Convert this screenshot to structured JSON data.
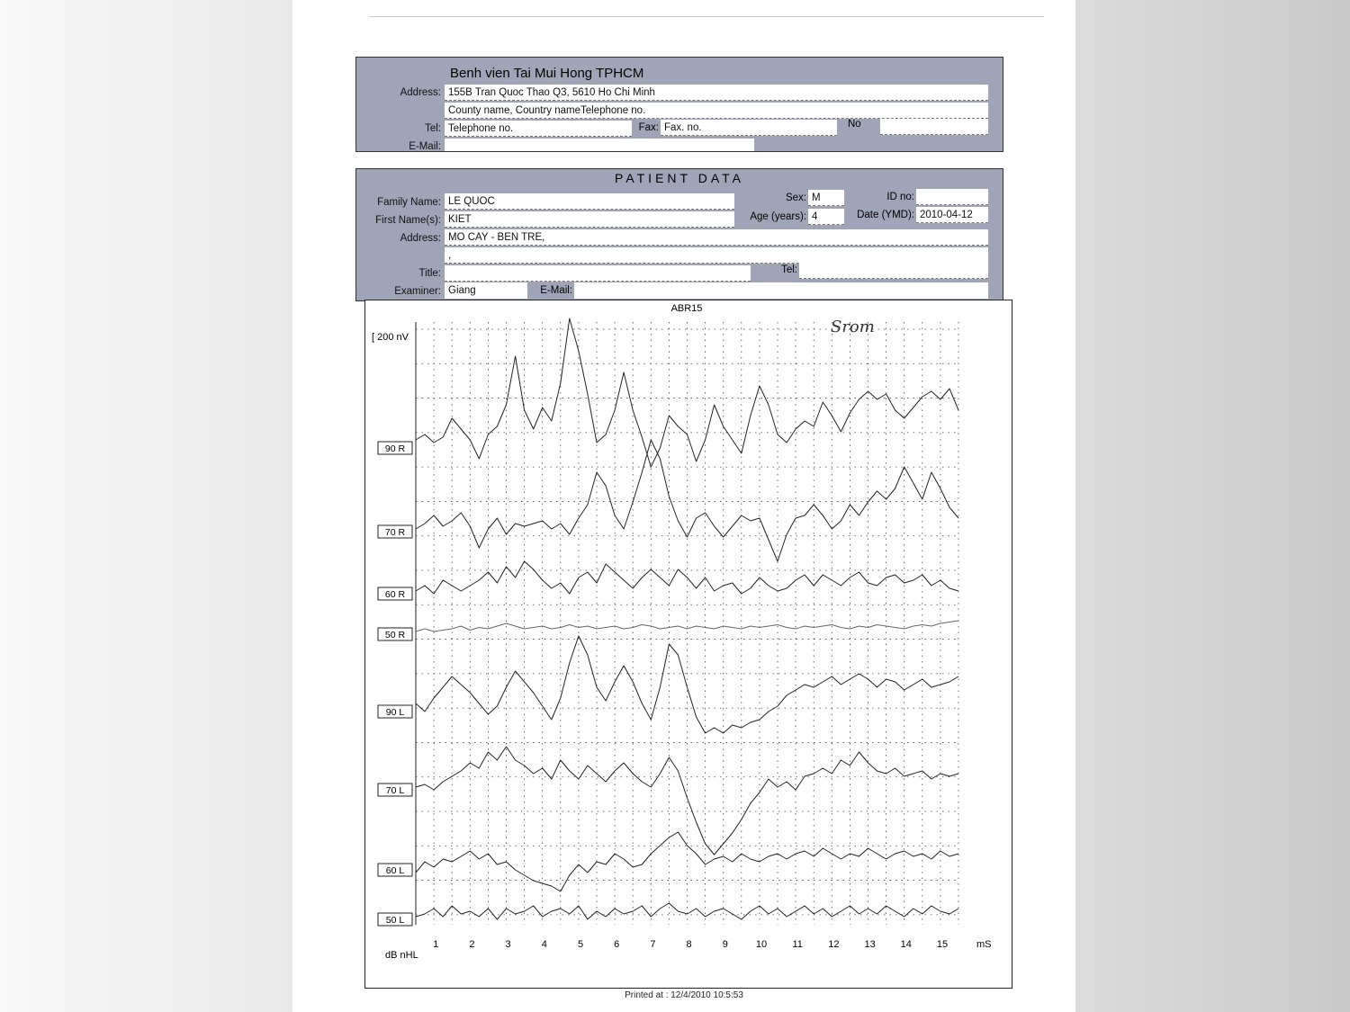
{
  "hospital": {
    "name": "Benh vien Tai Mui Hong TPHCM",
    "address_label": "Address:",
    "address_line1": "155B Tran Quoc Thao Q3, 5610 Ho Chi Minh",
    "address_line2": "County name, Country nameTelephone no.",
    "tel_label": "Tel:",
    "tel_value": "Telephone no.",
    "fax_label": "Fax:",
    "fax_value": "Fax. no.",
    "no_label": "No",
    "email_label": "E-Mail:"
  },
  "patient": {
    "title": "PATIENT DATA",
    "family_name_label": "Family Name:",
    "family_name": "LE QUOC",
    "first_name_label": "First Name(s):",
    "first_name": "KIET",
    "address_label": "Address:",
    "address_line1": "MO CAY - BEN TRE,",
    "address_line2": ",",
    "title_label": "Title:",
    "examiner_label": "Examiner:",
    "examiner": "Giang",
    "email_label": "E-Mail:",
    "sex_label": "Sex:",
    "sex": "M",
    "id_label": "ID no:",
    "age_label": "Age (years):",
    "age": "4",
    "date_label": "Date (YMD):",
    "date": "2010-04-12",
    "tel_label": "Tel:"
  },
  "chart_data": {
    "type": "line",
    "title": "ABR15",
    "scale_label": "[ 200 nV",
    "annotation": "Srom",
    "xlabel": "mS",
    "ylabel": "dB nHL",
    "x_ticks": [
      "1",
      "2",
      "3",
      "4",
      "5",
      "6",
      "7",
      "8",
      "9",
      "10",
      "11",
      "12",
      "13",
      "14",
      "15"
    ],
    "xlim": [
      0,
      15
    ],
    "grid": true,
    "series": [
      {
        "name": "90 R",
        "values": [
          0.3,
          0.5,
          0.2,
          0.4,
          1.1,
          0.7,
          0.3,
          -0.4,
          0.5,
          0.8,
          1.6,
          3.4,
          1.4,
          0.7,
          1.5,
          1.0,
          2.4,
          4.8,
          3.6,
          2.0,
          0.2,
          0.5,
          1.4,
          2.8,
          1.4,
          0.4,
          -0.7,
          0,
          1.2,
          0.8,
          0.5,
          -0.5,
          0.3,
          1.6,
          0.8,
          0.3,
          -0.2,
          1.2,
          2.3,
          1.6,
          0.5,
          0.2,
          0.7,
          1.0,
          0.8,
          1.7,
          1.2,
          0.6,
          1.3,
          1.8,
          2.1,
          1.8,
          2.0,
          1.4,
          1.1,
          1.5,
          1.9,
          2.1,
          1.8,
          2.2,
          1.4
        ]
      },
      {
        "name": "70 R",
        "values": [
          0.1,
          0.3,
          0.6,
          0.2,
          0.4,
          0.7,
          0.2,
          -0.6,
          0.1,
          0.5,
          -0.1,
          0.3,
          0.2,
          0.3,
          0.4,
          0.1,
          0.3,
          -0.1,
          0.5,
          1.0,
          2.2,
          1.7,
          0.6,
          0.1,
          1.1,
          2.2,
          3.4,
          2.7,
          1.3,
          0.4,
          -0.2,
          0.5,
          0.7,
          0.2,
          -0.2,
          0.2,
          0.6,
          0.4,
          0.5,
          -0.3,
          -1.1,
          -0.1,
          0.5,
          0.6,
          1.0,
          0.6,
          0.1,
          0.4,
          1.0,
          0.6,
          1.1,
          1.5,
          1.2,
          1.6,
          2.4,
          1.8,
          1.2,
          2.2,
          1.6,
          0.9,
          0.5
        ]
      },
      {
        "name": "60 R",
        "values": [
          0.1,
          0.3,
          0,
          0.5,
          0.3,
          0.1,
          0.3,
          0.5,
          0.8,
          0.4,
          1.0,
          0.6,
          1.2,
          0.9,
          0.5,
          0.2,
          0.4,
          0,
          0.6,
          0.8,
          0.4,
          1.1,
          0.8,
          0.5,
          0.2,
          0.6,
          0.9,
          0.6,
          0.3,
          0.9,
          0.6,
          0.2,
          0.6,
          0.1,
          0.3,
          0.4,
          0,
          0.2,
          0.6,
          0.3,
          0.1,
          0.2,
          0.5,
          0.7,
          0.3,
          0.7,
          0.5,
          0.3,
          0.6,
          0.8,
          0.4,
          0.3,
          0.6,
          0.7,
          0.4,
          0.5,
          0.7,
          0.3,
          0.5,
          0.2,
          0.1
        ]
      },
      {
        "name": "50 R",
        "values": [
          0.1,
          0.2,
          0.1,
          0.15,
          0.2,
          0.3,
          0.15,
          0.25,
          0.2,
          0.3,
          0.4,
          0.3,
          0.2,
          0.25,
          0.3,
          0.2,
          0.25,
          0.35,
          0.25,
          0.3,
          0.2,
          0.25,
          0.3,
          0.2,
          0.25,
          0.35,
          0.3,
          0.2,
          0.25,
          0.3,
          0.2,
          0.3,
          0.25,
          0.2,
          0.3,
          0.25,
          0.2,
          0.3,
          0.25,
          0.3,
          0.35,
          0.25,
          0.2,
          0.3,
          0.25,
          0.3,
          0.35,
          0.25,
          0.2,
          0.3,
          0.25,
          0.35,
          0.3,
          0.25,
          0.2,
          0.3,
          0.35,
          0.3,
          0.4,
          0.45,
          0.5
        ]
      },
      {
        "name": "90 L",
        "values": [
          0.3,
          0.0,
          0.5,
          0.9,
          1.3,
          1.0,
          0.7,
          0.3,
          -0.1,
          0.2,
          0.9,
          1.5,
          1.1,
          0.7,
          0.2,
          -0.3,
          0.5,
          1.8,
          2.8,
          2.1,
          0.9,
          0.4,
          1.1,
          1.7,
          1.1,
          0.3,
          -0.3,
          0.9,
          2.5,
          2.1,
          0.9,
          -0.2,
          -0.8,
          -0.6,
          -0.8,
          -0.5,
          -0.6,
          -0.4,
          -0.3,
          0.0,
          0.2,
          0.6,
          0.8,
          1.0,
          0.9,
          1.1,
          1.3,
          1.0,
          1.2,
          1.4,
          1.2,
          0.9,
          1.2,
          1.1,
          0.8,
          1.0,
          1.2,
          0.9,
          1.0,
          1.1,
          1.3
        ]
      },
      {
        "name": "70 L",
        "values": [
          0.1,
          0.2,
          0.0,
          0.3,
          0.5,
          0.7,
          1.0,
          0.8,
          1.4,
          1.1,
          1.6,
          1.1,
          0.9,
          0.6,
          0.8,
          0.4,
          1.1,
          0.7,
          0.4,
          0.9,
          0.6,
          0.3,
          0.7,
          1.0,
          0.6,
          0.3,
          0.1,
          0.6,
          1.2,
          0.7,
          -0.3,
          -1.2,
          -2.0,
          -2.4,
          -2.0,
          -1.6,
          -1.1,
          -0.5,
          -0.1,
          0.4,
          0.1,
          0.3,
          0.0,
          0.5,
          0.6,
          0.8,
          0.6,
          1.1,
          0.9,
          1.4,
          1.0,
          0.7,
          0.6,
          0.8,
          0.5,
          0.6,
          0.7,
          0.4,
          0.6,
          0.5,
          0.6
        ]
      },
      {
        "name": "60 L",
        "values": [
          -0.1,
          0.3,
          0.1,
          0.4,
          0.3,
          0.5,
          0.7,
          0.4,
          0.6,
          0.2,
          0.3,
          0.0,
          -0.2,
          -0.4,
          -0.5,
          -0.6,
          -0.8,
          -0.2,
          0.2,
          -0.1,
          0.3,
          0.2,
          0.6,
          0.4,
          0.1,
          0.2,
          0.6,
          0.9,
          1.2,
          1.4,
          0.9,
          0.6,
          0.2,
          0.4,
          0.5,
          0.3,
          0.6,
          0.4,
          0.3,
          0.5,
          0.6,
          0.4,
          0.6,
          0.7,
          0.5,
          0.8,
          0.6,
          0.4,
          0.6,
          0.5,
          0.8,
          0.6,
          0.4,
          0.6,
          0.7,
          0.5,
          0.6,
          0.4,
          0.7,
          0.5,
          0.6
        ]
      },
      {
        "name": "50 L",
        "values": [
          0.1,
          0.2,
          0.4,
          0.1,
          0.5,
          0.2,
          0.3,
          0.1,
          0.4,
          0.0,
          0.4,
          0.2,
          0.3,
          0.5,
          0.1,
          0.3,
          0.4,
          0.2,
          0.5,
          0.0,
          0.3,
          0.1,
          0.4,
          0.2,
          0.3,
          0.5,
          0.1,
          0.4,
          0.6,
          0.3,
          0.2,
          0.4,
          0.1,
          0.3,
          0.4,
          0.2,
          0.0,
          0.3,
          0.5,
          0.2,
          0.4,
          0.1,
          0.3,
          0.5,
          0.2,
          0.4,
          0.1,
          0.3,
          0.5,
          0.2,
          0.4,
          0.2,
          0.5,
          0.3,
          0.1,
          0.4,
          0.2,
          0.5,
          0.3,
          0.2,
          0.4
        ]
      }
    ]
  },
  "footer": {
    "printed_at": "Printed at : 12/4/2010 10:5:53"
  }
}
